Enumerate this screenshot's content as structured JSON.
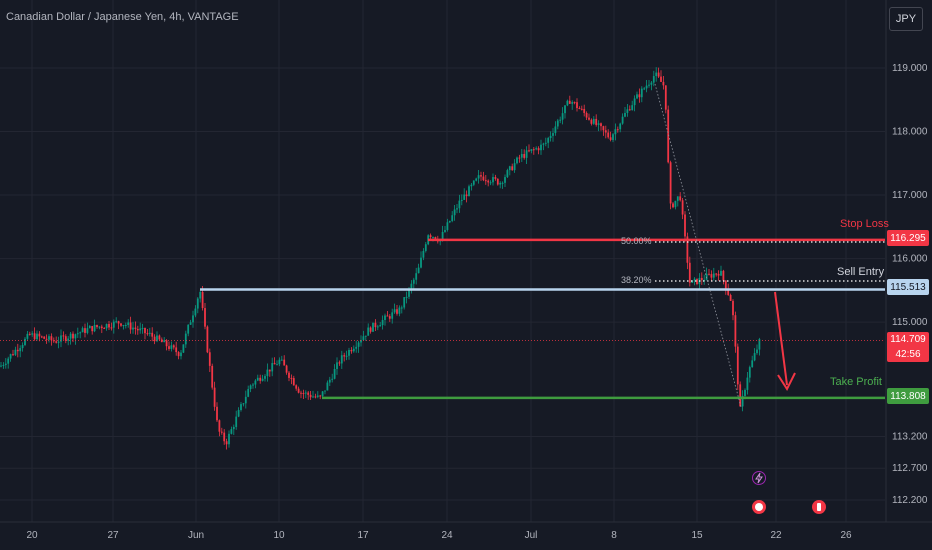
{
  "chart_title": "Canadian Dollar / Japanese Yen, 4h, VANTAGE",
  "currency_button": "JPY",
  "chart_data": {
    "type": "candlestick",
    "title": "Canadian Dollar / Japanese Yen, 4h, VANTAGE",
    "y_tick_labels": [
      "119.000",
      "118.000",
      "117.000",
      "116.000",
      "115.000",
      "113.200",
      "112.700",
      "112.200"
    ],
    "x_tick_labels": [
      "20",
      "27",
      "Jun",
      "10",
      "17",
      "24",
      "Jul",
      "8",
      "15",
      "22",
      "26"
    ],
    "ylim": [
      112.0,
      119.6
    ],
    "grid": true,
    "path_close": [
      [
        "20",
        114.3
      ],
      [
        "27",
        114.8
      ],
      [
        "Jun",
        115.5
      ],
      [
        "Jun",
        114.3
      ],
      [
        "Jun",
        113.1
      ],
      [
        "10",
        114.4
      ],
      [
        "10",
        113.8
      ],
      [
        "17",
        114.4
      ],
      [
        "17",
        115.2
      ],
      [
        "24",
        116.3
      ],
      [
        "24",
        117.3
      ],
      [
        "Jul",
        117.6
      ],
      [
        "Jul",
        118.5
      ],
      [
        "8",
        117.9
      ],
      [
        "8",
        118.9
      ],
      [
        "8",
        116.8
      ],
      [
        "15",
        115.3
      ],
      [
        "15",
        115.8
      ],
      [
        "15",
        113.6
      ],
      [
        "22",
        114.709
      ]
    ],
    "current_price": {
      "value": "114.709",
      "countdown": "42:56"
    },
    "levels": [
      {
        "name": "Stop Loss",
        "value": 116.295,
        "label": "116.295",
        "color": "#f23645"
      },
      {
        "name": "Sell Entry",
        "value": 115.513,
        "label": "115.513",
        "color": "#b8d4ee"
      },
      {
        "name": "Take Profit",
        "value": 113.808,
        "label": "113.808",
        "color": "#3f9c3f"
      }
    ],
    "fib_labels": [
      "50.00%",
      "38.20%"
    ]
  },
  "colors": {
    "bull": "#089981",
    "bear": "#f23645",
    "background": "#161a25",
    "grid": "#232632"
  },
  "icons": [
    "lightning-event-icon",
    "flag-event-icon",
    "flag-event-icon"
  ]
}
